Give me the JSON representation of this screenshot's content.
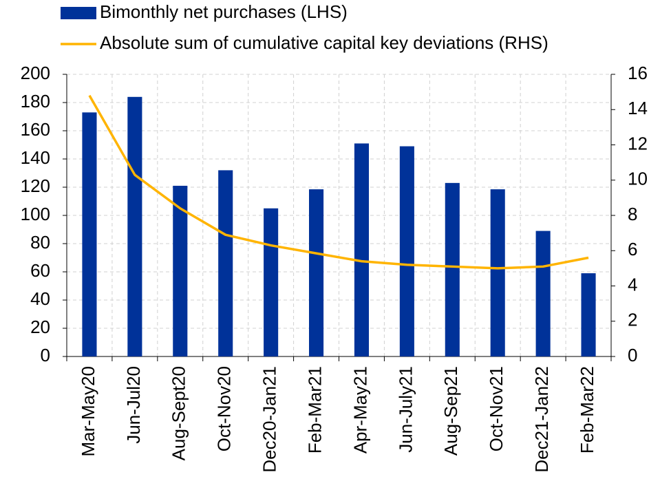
{
  "chart_data": {
    "type": "bar-line",
    "categories": [
      "Mar-May20",
      "Jun-Jul20",
      "Aug-Sept20",
      "Oct-Nov20",
      "Dec20-Jan21",
      "Feb-Mar21",
      "Apr-May21",
      "Jun-July21",
      "Aug-Sep21",
      "Oct-Nov21",
      "Dec21-Jan22",
      "Feb-Mar22"
    ],
    "series": [
      {
        "name": "Bimonthly net purchases (LHS)",
        "type": "bar",
        "color": "#003299",
        "values": [
          173,
          184,
          121,
          132,
          105,
          118.5,
          151,
          149,
          123,
          118.5,
          89,
          59
        ]
      },
      {
        "name": "Absolute sum of cumulative capital key deviations (RHS)",
        "type": "line",
        "axis": "y2",
        "color": "#ffb400",
        "values": [
          14.8,
          10.3,
          8.4,
          6.9,
          6.3,
          5.85,
          5.4,
          5.2,
          5.1,
          5.0,
          5.1,
          5.6
        ]
      }
    ],
    "ylim": [
      0,
      200
    ],
    "yticks": [
      0,
      20,
      40,
      60,
      80,
      100,
      120,
      140,
      160,
      180,
      200
    ],
    "y2lim": [
      0,
      16
    ],
    "y2ticks": [
      0,
      2,
      4,
      6,
      8,
      10,
      12,
      14,
      16
    ],
    "grid": true
  }
}
